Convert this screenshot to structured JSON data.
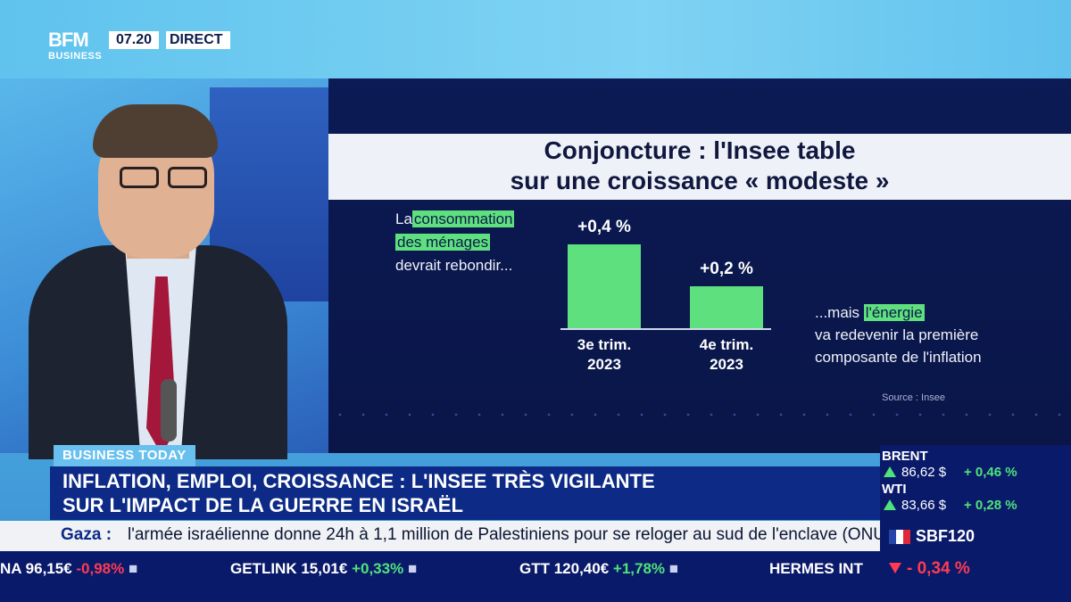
{
  "channel": {
    "logo_main": "BFM",
    "logo_sub": "BUSINESS",
    "time": "07.20",
    "live": "DIRECT"
  },
  "infographic": {
    "title_line1": "Conjoncture : l'Insee table",
    "title_line2": "sur une croissance « modeste »",
    "left_note": {
      "prefix": "La",
      "highlight1": "consommation",
      "highlight2": "des ménages",
      "rest": "devrait rebondir..."
    },
    "right_note": {
      "prefix": "...mais",
      "highlight": "l'énergie",
      "line2": "va redevenir la première",
      "line3": "composante de l'inflation"
    },
    "source": "Source : Insee",
    "accent_color": "#5fe07e"
  },
  "chart_data": {
    "type": "bar",
    "categories": [
      "3e trim. 2023",
      "4e trim. 2023"
    ],
    "category_lines": [
      [
        "3e trim.",
        "2023"
      ],
      [
        "4e trim.",
        "2023"
      ]
    ],
    "values": [
      0.4,
      0.2
    ],
    "value_labels": [
      "+0,4 %",
      "+0,2 %"
    ],
    "title": "",
    "xlabel": "",
    "ylabel": "",
    "ylim": [
      0,
      0.4
    ]
  },
  "lower_third": {
    "tag": "BUSINESS TODAY",
    "headline_line1": "INFLATION, EMPLOI, CROISSANCE : L'INSEE TRÈS VIGILANTE",
    "headline_line2": "SUR L'IMPACT DE LA GUERRE EN ISRAËL",
    "news_keyword": "Gaza :",
    "news_text": "l'armée israélienne donne 24h à 1,1 million de Palestiniens pour se reloger au sud de l'enclave (ONU)."
  },
  "stock_ticker": [
    {
      "name": "NA",
      "price": "96,15€",
      "change": "-0,98%",
      "trend": "down"
    },
    {
      "name": "GETLINK",
      "price": "15,01€",
      "change": "+0,33%",
      "trend": "up"
    },
    {
      "name": "GTT",
      "price": "120,40€",
      "change": "+1,78%",
      "trend": "up"
    },
    {
      "name": "HERMES INT",
      "price": "",
      "change": "",
      "trend": ""
    }
  ],
  "markets": {
    "brent": {
      "name": "BRENT",
      "value": "86,62 $",
      "change": "+ 0,46 %"
    },
    "wti": {
      "name": "WTI",
      "value": "83,66 $",
      "change": "+ 0,28 %"
    },
    "index": {
      "name": "SBF120",
      "change": "- 0,34 %"
    }
  }
}
